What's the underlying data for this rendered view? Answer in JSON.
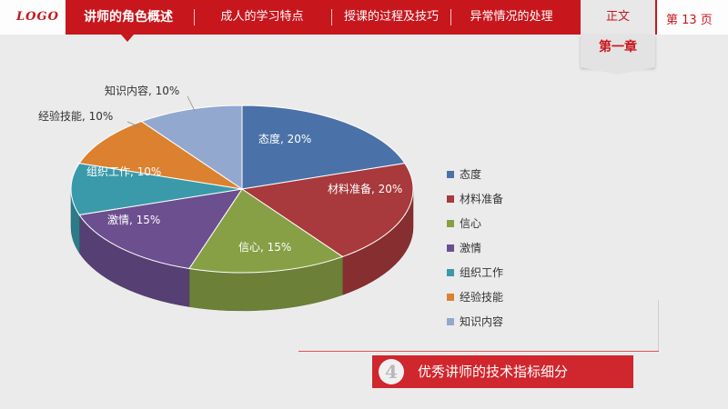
{
  "logo": "LOGO",
  "nav": {
    "items": [
      "讲师的角色概述",
      "成人的学习特点",
      "授课的过程及技巧",
      "异常情况的处理"
    ],
    "active_index": 0
  },
  "header": {
    "tab_label": "正文",
    "chapter_label": "第一章",
    "page_label": "第 13 页"
  },
  "colors": {
    "brand": "#c8161d",
    "slice_colors": [
      "#4a72a8",
      "#a8393c",
      "#87a046",
      "#6c4f8f",
      "#3a9aaa",
      "#dc812f",
      "#92a8cf"
    ]
  },
  "chart_data": {
    "type": "pie",
    "style": "3d",
    "categories": [
      "态度",
      "材料准备",
      "信心",
      "激情",
      "组织工作",
      "经验技能",
      "知识内容"
    ],
    "values": [
      20,
      20,
      15,
      15,
      10,
      10,
      10
    ],
    "data_labels": [
      "态度, 20%",
      "材料准备, 20%",
      "信心, 15%",
      "激情, 15%",
      "组织工作, 10%",
      "经验技能, 10%",
      "知识内容, 10%"
    ],
    "legend_position": "right"
  },
  "banner": {
    "number": "4",
    "text": "优秀讲师的技术指标细分"
  }
}
